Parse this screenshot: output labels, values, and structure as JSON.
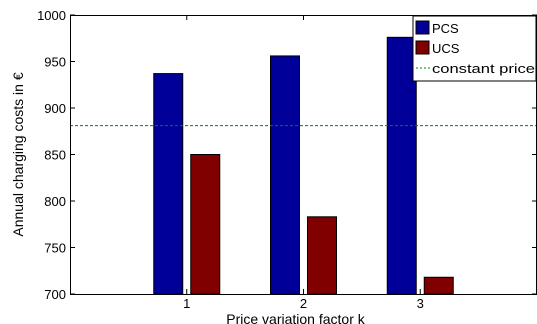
{
  "chart_data": {
    "type": "bar",
    "xlabel": "Price variation factor k",
    "ylabel": "Annual charging costs in €",
    "categories": [
      "1",
      "2",
      "3"
    ],
    "ylim": [
      700,
      1000
    ],
    "yticks": [
      700,
      750,
      800,
      850,
      900,
      950,
      1000
    ],
    "series": [
      {
        "name": "PCS",
        "values": [
          937,
          956,
          976
        ],
        "color": "#000099"
      },
      {
        "name": "UCS",
        "values": [
          850,
          783,
          718
        ],
        "color": "#800000"
      }
    ],
    "reference_line": {
      "name": "constant price",
      "value": 881,
      "color": "#008000",
      "style": "dashed"
    },
    "legend_position": "top-right",
    "grid": false
  }
}
